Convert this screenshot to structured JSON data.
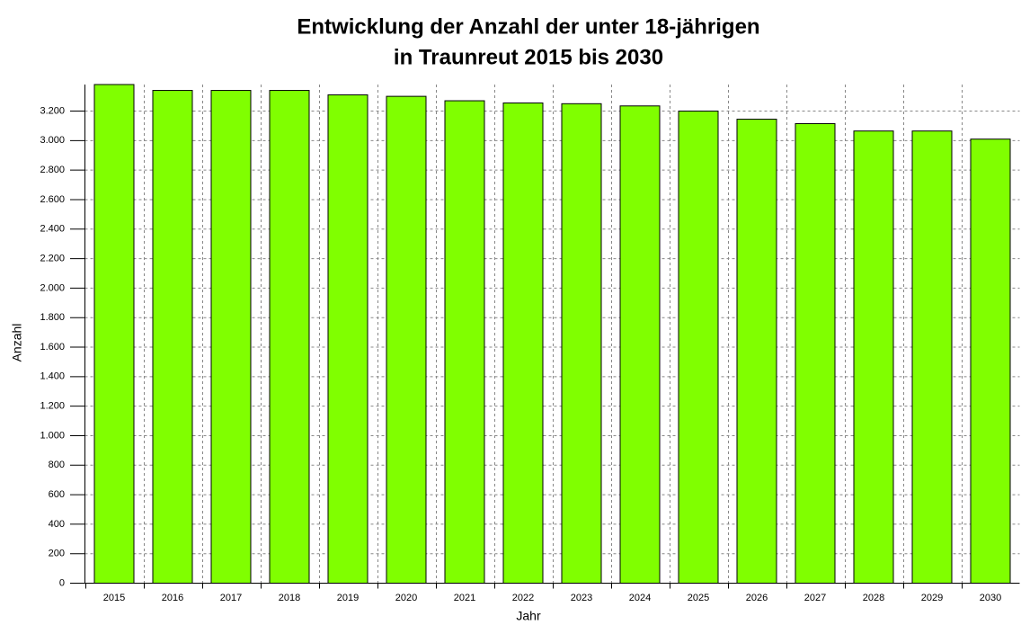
{
  "chart_data": {
    "type": "bar",
    "title": [
      "Entwicklung der Anzahl der unter 18-jährigen",
      "in Traunreut 2015 bis 2030"
    ],
    "x_label": "Jahr",
    "y_label": "Anzahl",
    "categories": [
      "2015",
      "2016",
      "2017",
      "2018",
      "2019",
      "2020",
      "2021",
      "2022",
      "2023",
      "2024",
      "2025",
      "2026",
      "2027",
      "2028",
      "2029",
      "2030"
    ],
    "values": [
      3380,
      3340,
      3340,
      3340,
      3310,
      3300,
      3270,
      3255,
      3250,
      3235,
      3200,
      3145,
      3115,
      3065,
      3065,
      3010
    ],
    "color": "#80ff00",
    "ylim": [
      0,
      3380
    ],
    "yticks": [
      0,
      200,
      400,
      600,
      800,
      {
        "value": 1000,
        "label": "1.000"
      },
      {
        "value": 1200,
        "label": "1.200"
      },
      {
        "value": 1400,
        "label": "1.400"
      },
      {
        "value": 1600,
        "label": "1.600"
      },
      {
        "value": 1800,
        "label": "1.800"
      },
      {
        "value": 2000,
        "label": "2.000"
      },
      {
        "value": 2200,
        "label": "2.200"
      },
      {
        "value": 2400,
        "label": "2.400"
      },
      {
        "value": 2600,
        "label": "2.600"
      },
      {
        "value": 2800,
        "label": "2.800"
      },
      {
        "value": 3000,
        "label": "3.000"
      },
      {
        "value": 3200,
        "label": "3.200"
      }
    ],
    "grid": true
  }
}
